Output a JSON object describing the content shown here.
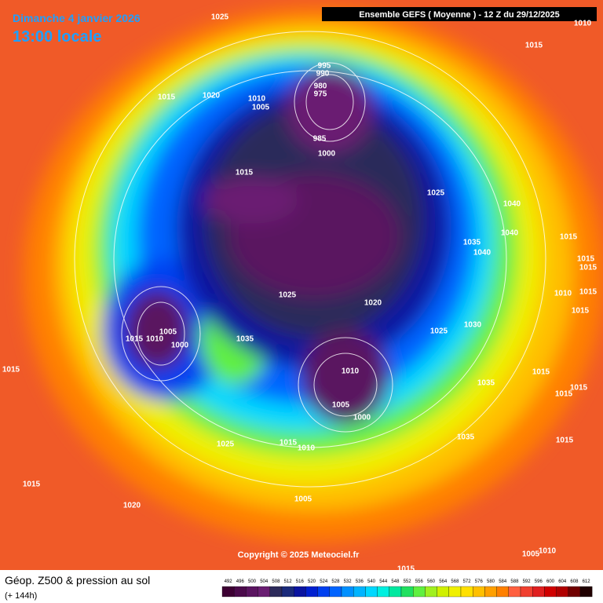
{
  "header": {
    "date": "Dimanche 4 janvier 2026",
    "time": "13:00 locale",
    "model": "Ensemble GEFS ( Moyenne ) - 12 Z du 29/12/2025"
  },
  "map": {
    "copyright": "Copyright © 2025 Meteociel.fr",
    "pressure_labels": [
      1025,
      1010,
      1015,
      995,
      990,
      980,
      975,
      1015,
      1020,
      1010,
      1005,
      985,
      1000,
      1015,
      1025,
      1040,
      1040,
      1015,
      1035,
      1040,
      1015,
      1015,
      1025,
      1010,
      1015,
      1020,
      1015,
      1030,
      1025,
      1035,
      1015,
      1010,
      1005,
      1000,
      1015,
      1010,
      1015,
      1035,
      1015,
      1015,
      1005,
      1000,
      1035,
      1015,
      1025,
      1015,
      1010,
      1015,
      1005,
      1020,
      1010,
      1005,
      1015
    ]
  },
  "footer": {
    "title": "Géop. Z500 & pression au sol",
    "subtitle": "(+ 144h)"
  },
  "colorbar": {
    "levels": [
      492,
      496,
      500,
      504,
      508,
      512,
      516,
      520,
      524,
      528,
      532,
      536,
      540,
      544,
      548,
      552,
      556,
      560,
      564,
      568,
      572,
      576,
      580,
      584,
      588,
      592,
      596,
      600,
      604,
      608,
      612
    ],
    "colors": [
      "#3d0033",
      "#4b0a4b",
      "#5a1460",
      "#6a1e72",
      "#2c2a5a",
      "#1a2a7a",
      "#0a14a0",
      "#0020d0",
      "#0040f0",
      "#0064ff",
      "#0090ff",
      "#00b4ff",
      "#00d8ff",
      "#00f0e0",
      "#00e8a0",
      "#20e060",
      "#60f040",
      "#a0f020",
      "#d0f000",
      "#f0f000",
      "#ffe000",
      "#ffc000",
      "#ffa000",
      "#ff8000",
      "#ff6040",
      "#f04030",
      "#e02020",
      "#d00000",
      "#b00000",
      "#700000",
      "#200000"
    ]
  }
}
